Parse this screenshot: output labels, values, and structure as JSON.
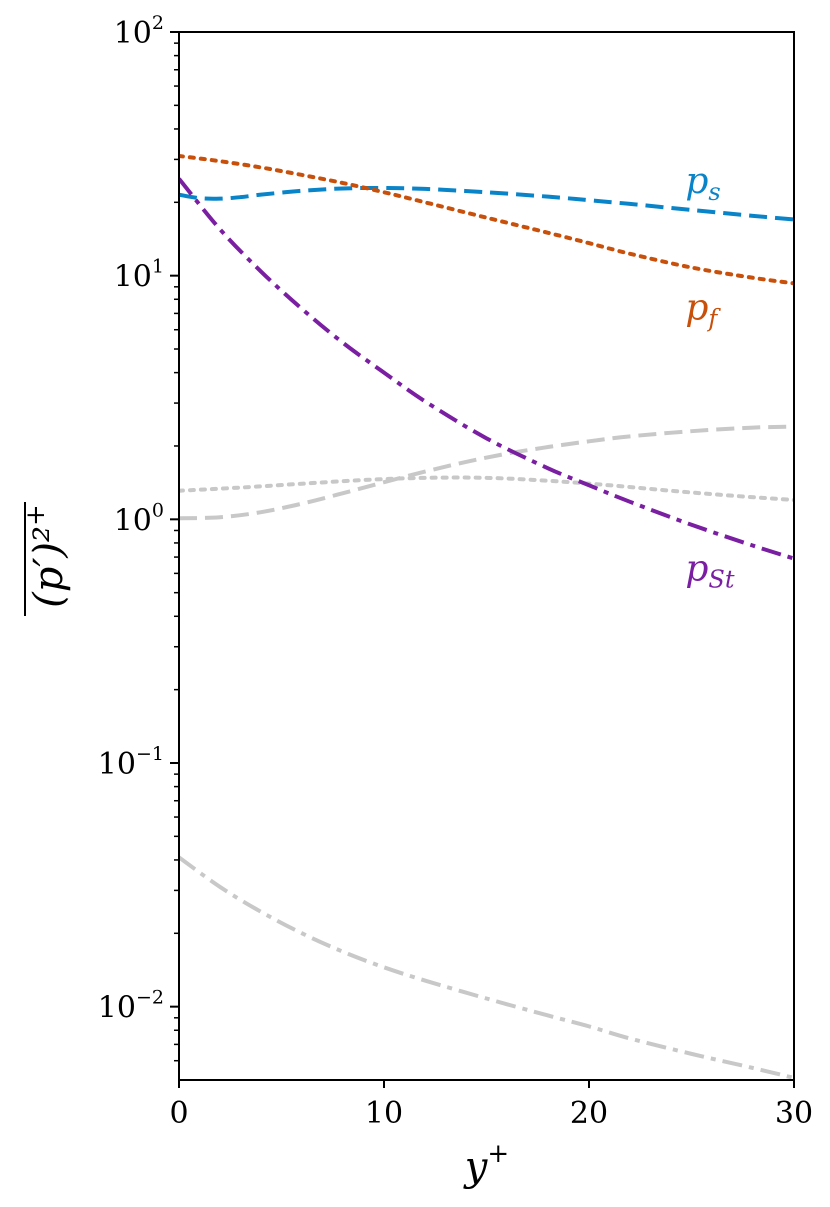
{
  "chart_data": {
    "type": "line",
    "xlabel": "y",
    "xlabel_superscript": "+",
    "ylabel": "(p′)²",
    "ylabel_superscript": "+",
    "xlim": [
      0,
      30
    ],
    "ylim": [
      0.005,
      100
    ],
    "yscale": "log",
    "grid": false,
    "x_ticks": [
      0,
      10,
      20,
      30
    ],
    "x_tick_labels": [
      "0",
      "10",
      "20",
      "30"
    ],
    "y_ticks": [
      0.01,
      0.1,
      1,
      10,
      100
    ],
    "y_tick_labels": [
      {
        "base": "10",
        "exp": "−2"
      },
      {
        "base": "10",
        "exp": "−1"
      },
      {
        "base": "10",
        "exp": "0"
      },
      {
        "base": "10",
        "exp": "1"
      },
      {
        "base": "10",
        "exp": "2"
      }
    ],
    "series": [
      {
        "name": "p_s",
        "label_main": "p",
        "label_sub": "s",
        "color": "#0a84c8",
        "dash": "dashed",
        "emphasis": true,
        "x": [
          0,
          1,
          2,
          3,
          4,
          6,
          8,
          10,
          12,
          15,
          18,
          20,
          22,
          25,
          28,
          30
        ],
        "y": [
          21.5,
          20.8,
          20.7,
          21.0,
          21.5,
          22.3,
          22.8,
          22.9,
          22.7,
          22.0,
          21.1,
          20.4,
          19.7,
          18.6,
          17.6,
          17.0
        ]
      },
      {
        "name": "p_f",
        "label_main": "p",
        "label_sub": "f",
        "color": "#c8500a",
        "dash": "dotted",
        "emphasis": true,
        "x": [
          0,
          2,
          4,
          6,
          8,
          10,
          12,
          15,
          18,
          20,
          22,
          25,
          28,
          30
        ],
        "y": [
          31,
          29.5,
          27.8,
          25.9,
          24.0,
          22.0,
          20.0,
          17.3,
          15.0,
          13.6,
          12.3,
          10.8,
          9.8,
          9.3
        ]
      },
      {
        "name": "p_St",
        "label_main": "p",
        "label_sub": "St",
        "color": "#7b1fa2",
        "dash": "dashdot",
        "emphasis": true,
        "x": [
          0,
          2,
          4,
          6,
          8,
          10,
          12,
          15,
          18,
          20,
          22,
          25,
          28,
          30
        ],
        "y": [
          25,
          15.5,
          10.4,
          7.3,
          5.3,
          4.0,
          3.05,
          2.15,
          1.62,
          1.38,
          1.18,
          0.95,
          0.78,
          0.69
        ]
      },
      {
        "name": "",
        "color": "#c8c8c8",
        "dash": "dashed",
        "emphasis": false,
        "x": [
          0,
          2,
          4,
          6,
          8,
          10,
          12,
          14,
          16,
          18,
          20,
          22,
          25,
          28,
          30
        ],
        "y": [
          1.01,
          1.02,
          1.07,
          1.16,
          1.28,
          1.42,
          1.57,
          1.72,
          1.86,
          1.98,
          2.09,
          2.19,
          2.3,
          2.38,
          2.4
        ]
      },
      {
        "name": "",
        "color": "#c8c8c8",
        "dash": "dotted",
        "emphasis": false,
        "x": [
          0,
          3,
          6,
          9,
          12,
          15,
          18,
          21,
          24,
          27,
          30
        ],
        "y": [
          1.31,
          1.35,
          1.4,
          1.45,
          1.48,
          1.48,
          1.44,
          1.38,
          1.31,
          1.25,
          1.2
        ]
      },
      {
        "name": "",
        "color": "#c8c8c8",
        "dash": "dashdot",
        "emphasis": false,
        "x": [
          0,
          2,
          4,
          6,
          8,
          10,
          12,
          15,
          18,
          20,
          22,
          25,
          28,
          30
        ],
        "y": [
          0.041,
          0.031,
          0.0245,
          0.02,
          0.0168,
          0.0145,
          0.0128,
          0.0108,
          0.0092,
          0.0083,
          0.0074,
          0.0064,
          0.0056,
          0.0051
        ]
      }
    ],
    "annotations": [
      {
        "series": "p_s",
        "x": 24.7,
        "y": 21.8
      },
      {
        "series": "p_f",
        "x": 24.7,
        "y": 6.6
      },
      {
        "series": "p_St",
        "x": 24.7,
        "y": 0.56
      }
    ]
  }
}
